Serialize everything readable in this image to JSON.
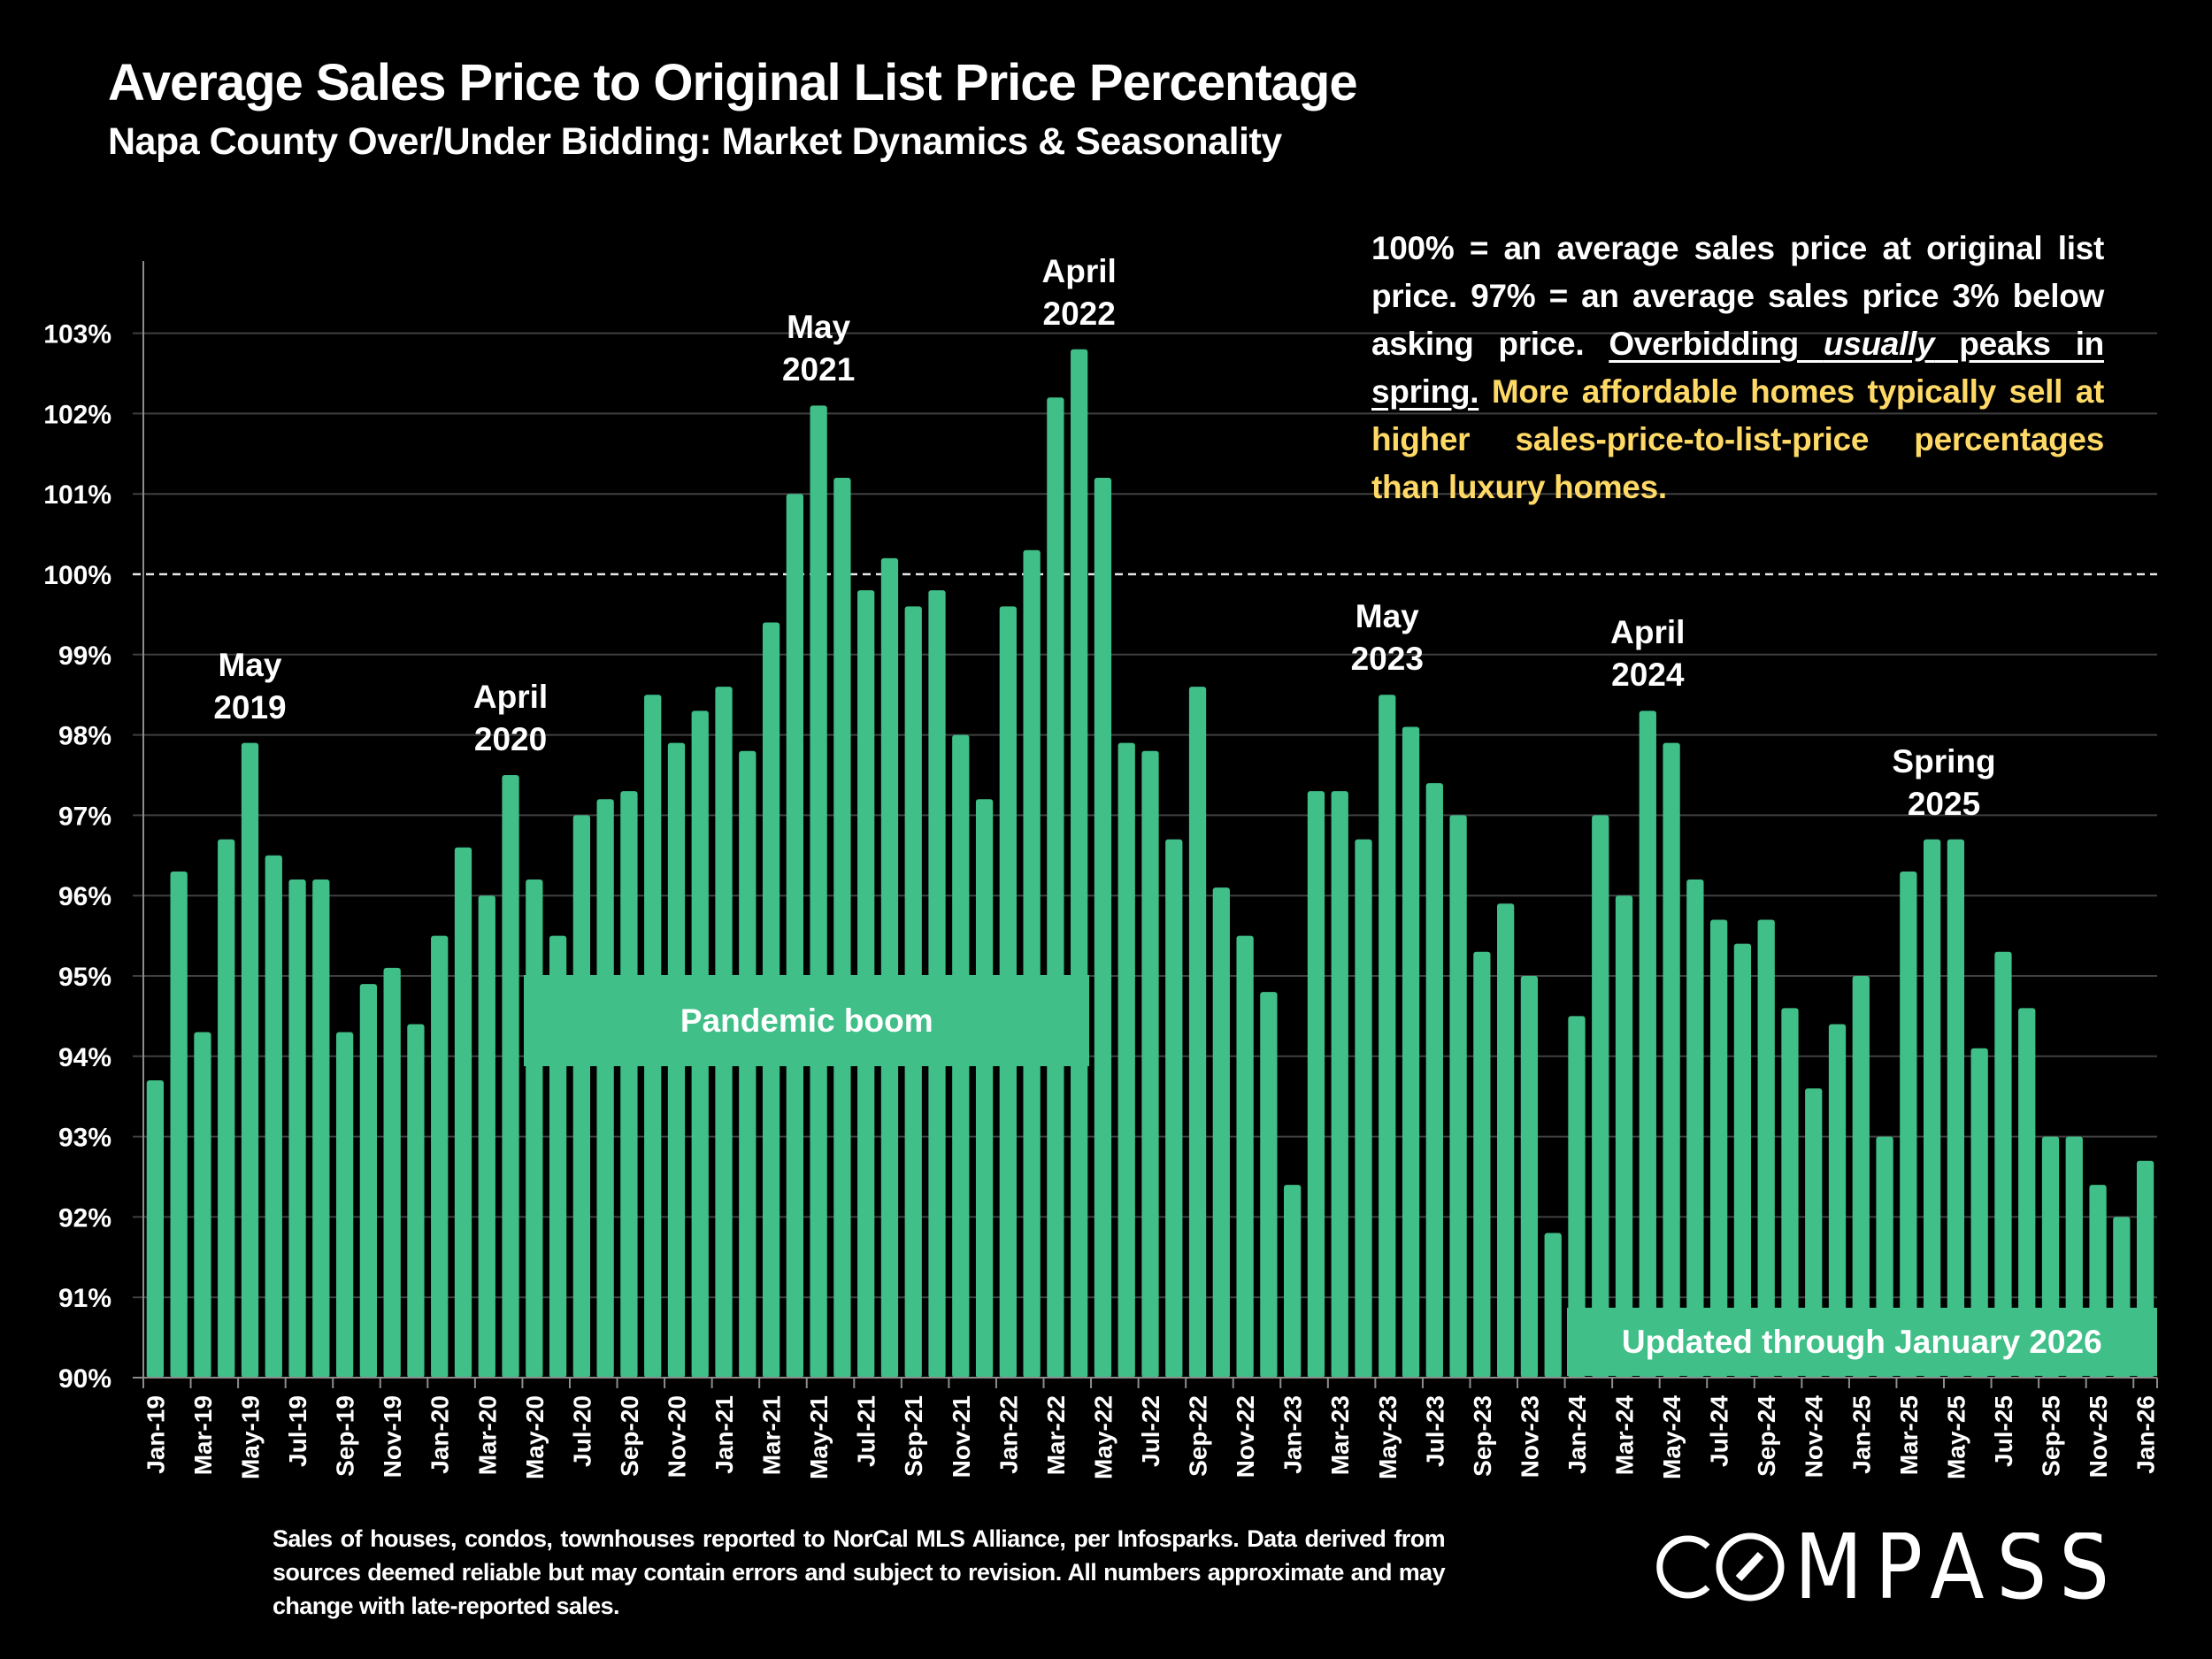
{
  "title": "Average Sales Price to Original List Price Percentage",
  "subtitle": "Napa County Over/Under Bidding: Market Dynamics & Seasonality",
  "note": {
    "part1": "100% = an average sales price at original list price. 97% = an average sales price 3% below asking price. ",
    "underline_a": "Overbidding ",
    "underline_italic": "usually",
    "underline_b": " peaks in spring.",
    "highlight": " More affordable homes typically sell at higher sales-price-to-list-price percentages than luxury homes."
  },
  "footer": "Sales of houses, condos, townhouses reported to NorCal MLS Alliance, per Infosparks. Data derived from sources deemed reliable but may contain errors and subject to revision. All numbers approximate and may change with late-reported sales.",
  "logo": "COMPASS",
  "colors": {
    "bar": "#40BF88",
    "highlight_text": "#FFD966",
    "background": "#000000",
    "gridline": "#404040"
  },
  "annotations": {
    "peaks": [
      {
        "line1": "May",
        "line2": "2019",
        "month": "May-19"
      },
      {
        "line1": "April",
        "line2": "2020",
        "month": "Apr-20"
      },
      {
        "line1": "May",
        "line2": "2021",
        "month": "May-21"
      },
      {
        "line1": "April",
        "line2": "2022",
        "month": "Apr-22"
      },
      {
        "line1": "May",
        "line2": "2023",
        "month": "May-23"
      },
      {
        "line1": "April",
        "line2": "2024",
        "month": "Apr-24"
      },
      {
        "line1": "Spring",
        "line2": "2025",
        "month": "Apr-25"
      }
    ],
    "pandemic_label": "Pandemic boom",
    "pandemic_range": [
      "May-20",
      "Apr-22"
    ],
    "updated_label": "Updated through January 2026",
    "updated_range": [
      "Jan-24",
      "Jan-26"
    ]
  },
  "chart_data": {
    "type": "bar",
    "title": "Average Sales Price to Original List Price Percentage",
    "subtitle": "Napa County Over/Under Bidding: Market Dynamics & Seasonality",
    "xlabel": "",
    "ylabel": "",
    "ylim": [
      90,
      103
    ],
    "yticks": [
      "90%",
      "91%",
      "92%",
      "93%",
      "94%",
      "95%",
      "96%",
      "97%",
      "98%",
      "99%",
      "100%",
      "101%",
      "102%",
      "103%"
    ],
    "reference_line": {
      "value": 100,
      "style": "dashed"
    },
    "grid": true,
    "legend": "none",
    "tick_label_every": 2,
    "categories": [
      "Jan-19",
      "Feb-19",
      "Mar-19",
      "Apr-19",
      "May-19",
      "Jun-19",
      "Jul-19",
      "Aug-19",
      "Sep-19",
      "Oct-19",
      "Nov-19",
      "Dec-19",
      "Jan-20",
      "Feb-20",
      "Mar-20",
      "Apr-20",
      "May-20",
      "Jun-20",
      "Jul-20",
      "Aug-20",
      "Sep-20",
      "Oct-20",
      "Nov-20",
      "Dec-20",
      "Jan-21",
      "Feb-21",
      "Mar-21",
      "Apr-21",
      "May-21",
      "Jun-21",
      "Jul-21",
      "Aug-21",
      "Sep-21",
      "Oct-21",
      "Nov-21",
      "Dec-21",
      "Jan-22",
      "Feb-22",
      "Mar-22",
      "Apr-22",
      "May-22",
      "Jun-22",
      "Jul-22",
      "Aug-22",
      "Sep-22",
      "Oct-22",
      "Nov-22",
      "Dec-22",
      "Jan-23",
      "Feb-23",
      "Mar-23",
      "Apr-23",
      "May-23",
      "Jun-23",
      "Jul-23",
      "Aug-23",
      "Sep-23",
      "Oct-23",
      "Nov-23",
      "Dec-23",
      "Jan-24",
      "Feb-24",
      "Mar-24",
      "Apr-24",
      "May-24",
      "Jun-24",
      "Jul-24",
      "Aug-24",
      "Sep-24",
      "Oct-24",
      "Nov-24",
      "Dec-24",
      "Jan-25",
      "Feb-25",
      "Mar-25",
      "Apr-25",
      "May-25",
      "Jun-25",
      "Jul-25",
      "Aug-25",
      "Sep-25",
      "Oct-25",
      "Nov-25",
      "Dec-25",
      "Jan-26"
    ],
    "values": [
      93.7,
      96.3,
      94.3,
      96.7,
      97.9,
      96.5,
      96.2,
      96.2,
      94.3,
      94.9,
      95.1,
      94.4,
      95.5,
      96.6,
      96.0,
      97.5,
      96.2,
      95.5,
      97.0,
      97.2,
      97.3,
      98.5,
      97.9,
      98.3,
      98.6,
      97.8,
      99.4,
      101.0,
      102.1,
      101.2,
      99.8,
      100.2,
      99.6,
      99.8,
      98.0,
      97.2,
      99.6,
      100.3,
      102.2,
      102.8,
      101.2,
      97.9,
      97.8,
      96.7,
      98.6,
      96.1,
      95.5,
      94.8,
      92.4,
      97.3,
      97.3,
      96.7,
      98.5,
      98.1,
      97.4,
      97.0,
      95.3,
      95.9,
      95.0,
      91.8,
      94.5,
      97.0,
      96.0,
      98.3,
      97.9,
      96.2,
      95.7,
      95.4,
      95.7,
      94.6,
      93.6,
      94.4,
      95.0,
      93.0,
      96.3,
      96.7,
      96.7,
      94.1,
      95.3,
      94.6,
      93.0,
      93.0,
      92.4,
      92.0,
      92.7
    ]
  }
}
